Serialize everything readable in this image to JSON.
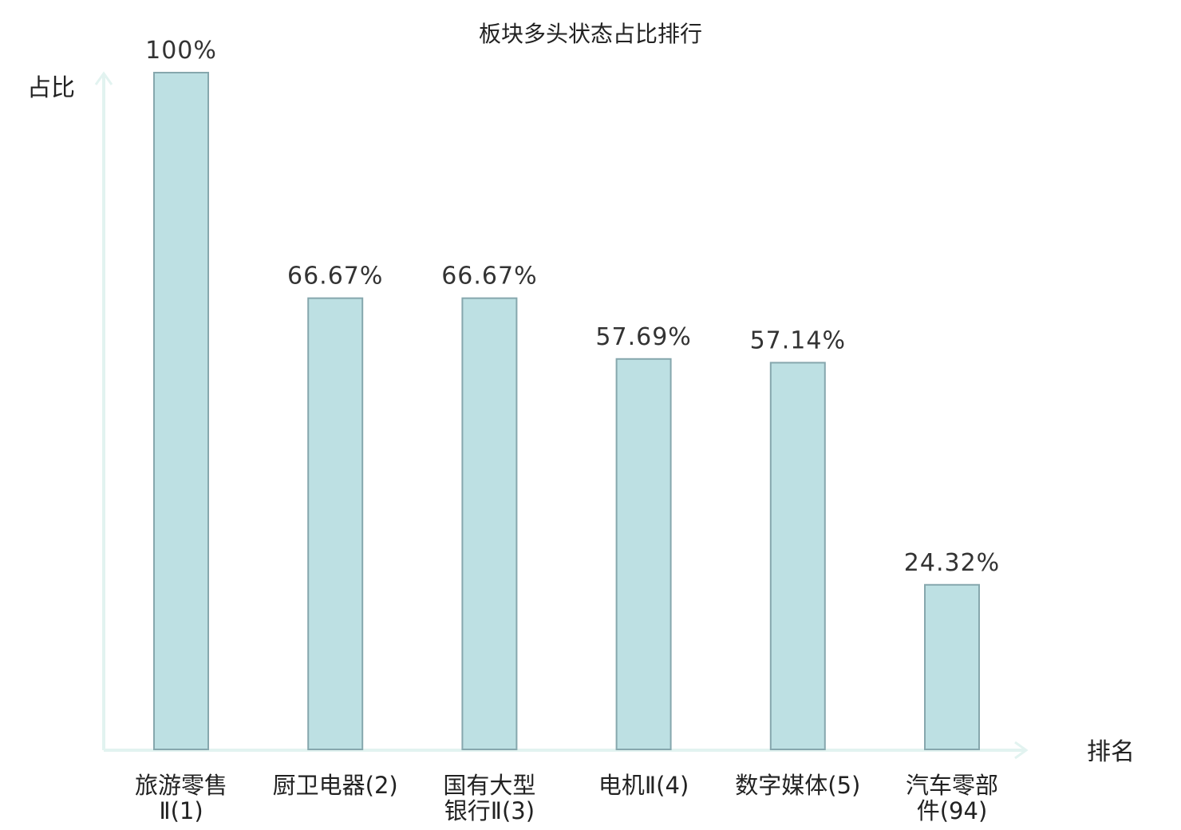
{
  "chart_data": {
    "type": "bar",
    "title": "板块多头状态占比排行",
    "ylabel": "占比",
    "xlabel": "排名",
    "ylim": [
      0,
      100
    ],
    "categories": [
      [
        "旅游零售",
        "Ⅱ(1)"
      ],
      [
        "厨卫电器(2)"
      ],
      [
        "国有大型",
        "银行Ⅱ(3)"
      ],
      [
        "电机Ⅱ(4)"
      ],
      [
        "数字媒体(5)"
      ],
      [
        "汽车零部",
        "件(94)"
      ]
    ],
    "values": [
      100,
      66.67,
      66.67,
      57.69,
      57.14,
      24.32
    ],
    "value_labels": [
      "100%",
      "66.67%",
      "66.67%",
      "57.69%",
      "57.14%",
      "24.32%"
    ],
    "highlight_index": 5,
    "colors": {
      "bar_fill": "#bde0e3",
      "bar_stroke": "#86a7ad",
      "axis": "#e2f3f0",
      "highlight_label": "#e8191c",
      "text": "#222222"
    }
  }
}
